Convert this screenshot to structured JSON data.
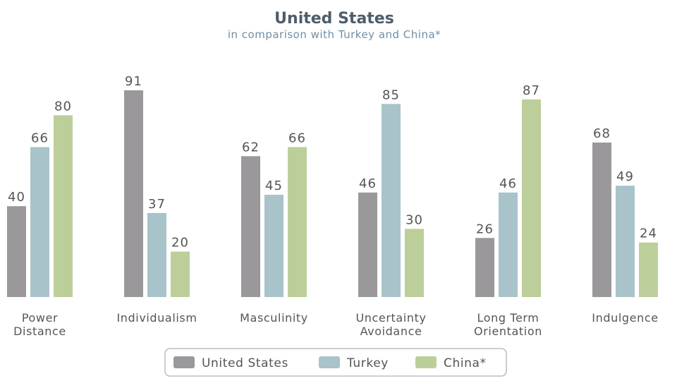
{
  "chart_data": {
    "type": "bar",
    "title": "United States",
    "subtitle": "in comparison with Turkey and China*",
    "categories": [
      [
        "Power",
        "Distance"
      ],
      [
        "Individualism"
      ],
      [
        "Masculinity"
      ],
      [
        "Uncertainty",
        "Avoidance"
      ],
      [
        "Long Term",
        "Orientation"
      ],
      [
        "Indulgence"
      ]
    ],
    "series": [
      {
        "name": "United States",
        "color": "#9a989b",
        "values": [
          40,
          91,
          62,
          46,
          26,
          68
        ]
      },
      {
        "name": "Turkey",
        "color": "#a8c3c9",
        "values": [
          66,
          37,
          45,
          85,
          46,
          49
        ]
      },
      {
        "name": "China*",
        "color": "#bccf9a",
        "values": [
          80,
          20,
          66,
          30,
          87,
          24
        ]
      }
    ],
    "ylim": [
      0,
      100
    ],
    "grid": false,
    "legend_position": "bottom-center"
  }
}
